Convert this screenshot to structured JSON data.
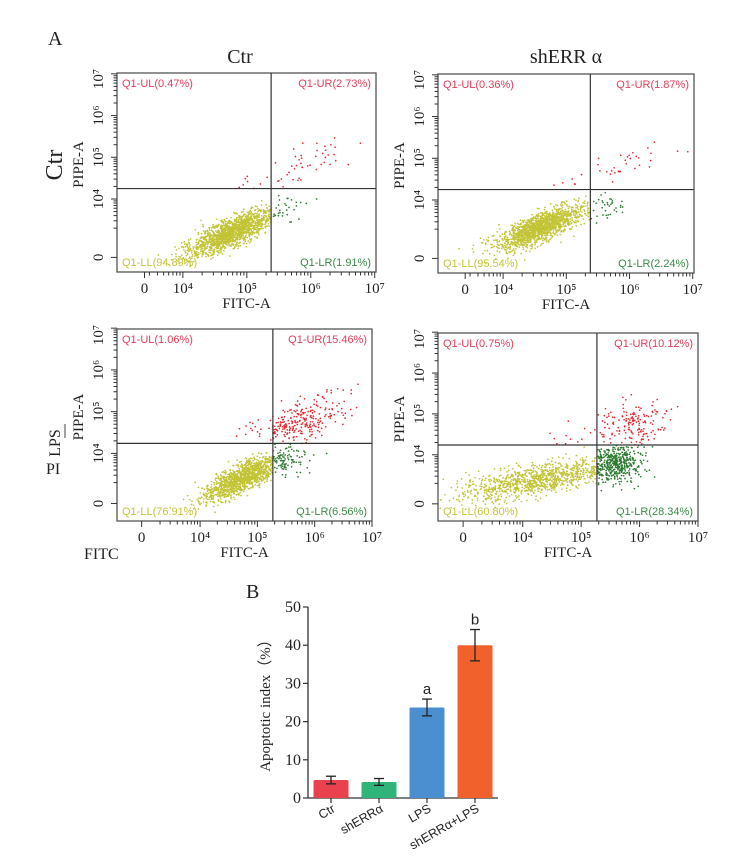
{
  "figure": {
    "panel_a_label": "A",
    "panel_b_label": "B",
    "column_titles": [
      "Ctr",
      "shERR α"
    ],
    "row_titles": [
      "Ctr",
      "LPS"
    ],
    "side_labels": {
      "pi": "PI",
      "fitc": "FITC"
    }
  },
  "colors": {
    "events": {
      "LL": "#c2c436",
      "LR": "#2d7a32",
      "UR": "#e0282e",
      "UL": "#e0282e"
    },
    "quadrant_labels": {
      "UL": "#e0405a",
      "UR": "#e0405a",
      "LL": "#c4c53c",
      "LR": "#3a8a4a"
    },
    "frame": "#555555",
    "gate": "#333333"
  },
  "chart_data": [
    {
      "type": "scatter",
      "id": "ctr-ctr",
      "panel": "A",
      "row_group": "Ctr",
      "column_group": "Ctr",
      "xlabel": "FITC-A",
      "ylabel": "PIPE-A",
      "tick_labels": [
        "0",
        "10⁴",
        "10⁵",
        "10⁶",
        "10⁷"
      ],
      "x_range_log10": [
        2.97,
        7.02
      ],
      "x_zero_log10": 3.4,
      "y_range_log10": [
        2.25,
        7.02
      ],
      "y_zero_log10": 2.6,
      "gate_log10": {
        "fitc": 5.38,
        "pi": 4.25
      },
      "quadrants": [
        {
          "name": "Q1-UL",
          "pct": 0.47
        },
        {
          "name": "Q1-UR",
          "pct": 2.73
        },
        {
          "name": "Q1-LL",
          "pct": 94.89
        },
        {
          "name": "Q1-LR",
          "pct": 1.91
        }
      ],
      "populations": {
        "LL": {
          "center_log10": [
            4.76,
            3.2
          ],
          "sd_log10": [
            0.42,
            0.14
          ],
          "slope": 0.8
        },
        "LR": {
          "center_log10": [
            5.55,
            3.75
          ],
          "sd_log10": [
            0.2,
            0.16
          ],
          "slope": 0.8
        },
        "UR": {
          "center_log10": [
            5.95,
            4.85
          ],
          "sd_log10": [
            0.45,
            0.2
          ],
          "slope": 0.85
        },
        "UL": {
          "center_log10": [
            5.05,
            4.4
          ],
          "sd_log10": [
            0.2,
            0.12
          ],
          "slope": 0
        }
      }
    },
    {
      "type": "scatter",
      "id": "ctr-sherra",
      "panel": "A",
      "row_group": "Ctr",
      "column_group": "shERR α",
      "xlabel": "FITC-A",
      "ylabel": "PIPE-A",
      "tick_labels": [
        "0",
        "10⁴",
        "10⁵",
        "10⁶",
        "10⁷"
      ],
      "x_range_log10": [
        2.97,
        7.02
      ],
      "x_zero_log10": 3.4,
      "y_range_log10": [
        2.25,
        7.02
      ],
      "y_zero_log10": 2.6,
      "gate_log10": {
        "fitc": 5.38,
        "pi": 4.25
      },
      "quadrants": [
        {
          "name": "Q1-UL",
          "pct": 0.36
        },
        {
          "name": "Q1-UR",
          "pct": 1.87
        },
        {
          "name": "Q1-LL",
          "pct": 95.54
        },
        {
          "name": "Q1-LR",
          "pct": 2.24
        }
      ],
      "populations": {
        "LL": {
          "center_log10": [
            4.6,
            3.35
          ],
          "sd_log10": [
            0.42,
            0.14
          ],
          "slope": 0.7
        },
        "LR": {
          "center_log10": [
            5.6,
            3.8
          ],
          "sd_log10": [
            0.2,
            0.15
          ],
          "slope": 0.8
        },
        "UR": {
          "center_log10": [
            6.05,
            4.95
          ],
          "sd_log10": [
            0.5,
            0.22
          ],
          "slope": 0.8
        },
        "UL": {
          "center_log10": [
            5.0,
            4.45
          ],
          "sd_log10": [
            0.2,
            0.12
          ],
          "slope": 0
        }
      }
    },
    {
      "type": "scatter",
      "id": "lps-ctr",
      "panel": "A",
      "row_group": "LPS",
      "column_group": "Ctr",
      "xlabel": "FITC-A",
      "ylabel": "PIPE-A",
      "tick_labels": [
        "0",
        "10⁴",
        "10⁵",
        "10⁶",
        "10⁷"
      ],
      "x_range_log10": [
        2.55,
        7.0
      ],
      "x_zero_log10": 2.98,
      "y_range_log10": [
        2.38,
        6.98
      ],
      "y_zero_log10": 2.8,
      "gate_log10": {
        "fitc": 5.27,
        "pi": 4.24
      },
      "quadrants": [
        {
          "name": "Q1-UL",
          "pct": 1.06
        },
        {
          "name": "Q1-UR",
          "pct": 15.46
        },
        {
          "name": "Q1-LL",
          "pct": 76.91
        },
        {
          "name": "Q1-LR",
          "pct": 6.56
        }
      ],
      "populations": {
        "LL": {
          "center_log10": [
            4.74,
            3.41
          ],
          "sd_log10": [
            0.42,
            0.14
          ],
          "slope": 0.75
        },
        "LR": {
          "center_log10": [
            5.45,
            3.85
          ],
          "sd_log10": [
            0.22,
            0.18
          ],
          "slope": 0.6
        },
        "UR": {
          "center_log10": [
            5.75,
            4.75
          ],
          "sd_log10": [
            0.45,
            0.22
          ],
          "slope": 0.7
        },
        "UL": {
          "center_log10": [
            4.9,
            4.5
          ],
          "sd_log10": [
            0.25,
            0.15
          ],
          "slope": 0
        }
      }
    },
    {
      "type": "scatter",
      "id": "lps-sherra",
      "panel": "A",
      "row_group": "LPS",
      "column_group": "shERR α",
      "xlabel": "FITC-A",
      "ylabel": "PIPE-A",
      "tick_labels": [
        "0",
        "10⁴",
        "10⁵",
        "10⁶",
        "10⁷"
      ],
      "x_range_log10": [
        2.55,
        7.0
      ],
      "x_zero_log10": 2.98,
      "y_range_log10": [
        2.38,
        6.98
      ],
      "y_zero_log10": 2.8,
      "gate_log10": {
        "fitc": 5.27,
        "pi": 4.24
      },
      "quadrants": [
        {
          "name": "Q1-UL",
          "pct": 0.75
        },
        {
          "name": "Q1-UR",
          "pct": 10.12
        },
        {
          "name": "Q1-LL",
          "pct": 60.8
        },
        {
          "name": "Q1-LR",
          "pct": 28.34
        }
      ],
      "populations": {
        "LL": {
          "center_log10": [
            4.3,
            3.4
          ],
          "sd_log10": [
            0.7,
            0.18
          ],
          "slope": 0.25
        },
        "LR": {
          "center_log10": [
            5.55,
            3.8
          ],
          "sd_log10": [
            0.25,
            0.22
          ],
          "slope": 0.7
        },
        "UR": {
          "center_log10": [
            5.9,
            4.75
          ],
          "sd_log10": [
            0.35,
            0.25
          ],
          "slope": 0.5
        },
        "UL": {
          "center_log10": [
            4.9,
            4.5
          ],
          "sd_log10": [
            0.25,
            0.15
          ],
          "slope": 0
        }
      }
    },
    {
      "type": "bar",
      "id": "apoptotic-index",
      "panel": "B",
      "title": "",
      "xlabel": "",
      "ylabel": "Apoptotic index（%）",
      "categories": [
        "Ctr",
        "shERRα",
        "LPS",
        "shERRα+LPS"
      ],
      "values": [
        4.7,
        4.2,
        23.7,
        40.0
      ],
      "errors": [
        1.0,
        0.9,
        2.2,
        4.1
      ],
      "significance": [
        "",
        "",
        "a",
        "b"
      ],
      "colors": [
        "#e9424e",
        "#2fb47a",
        "#4b8fd1",
        "#f0612c"
      ],
      "ylim": [
        0,
        50
      ],
      "yticks": [
        "0",
        "10",
        "20",
        "30",
        "40",
        "50"
      ],
      "grid": false
    }
  ]
}
